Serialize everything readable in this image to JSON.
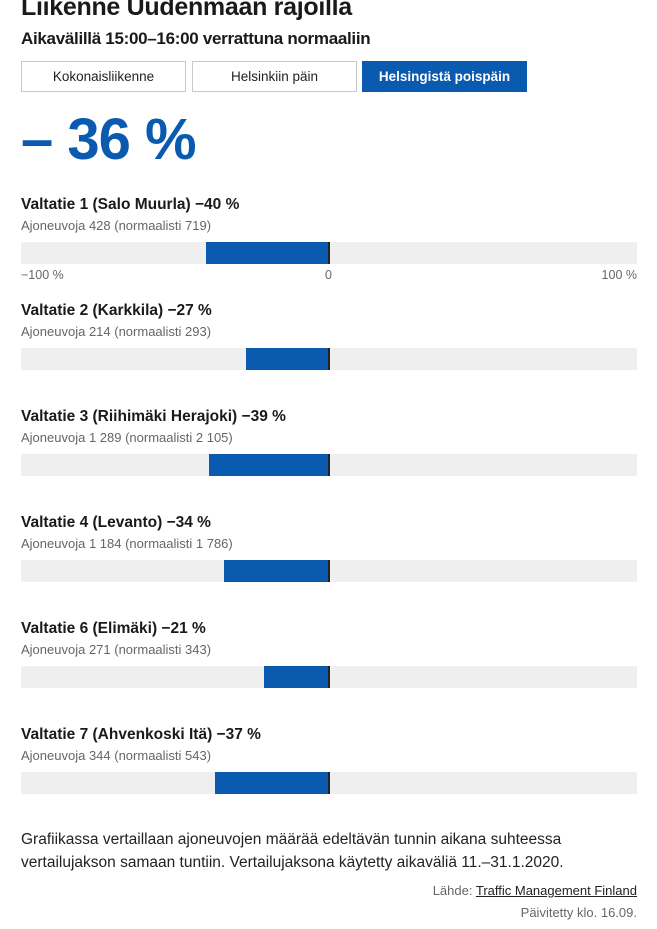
{
  "header": {
    "title": "Liikenne Uudenmaan rajoilla",
    "subtitle": "Aikavälillä 15:00–16:00 verrattuna normaaliin"
  },
  "tabs": [
    {
      "label": "Kokonaisliikenne",
      "active": false
    },
    {
      "label": "Helsinkiin päin",
      "active": false
    },
    {
      "label": "Helsingistä poispäin",
      "active": true
    }
  ],
  "total": "– 36 %",
  "colors": {
    "accent": "#0a5bb0",
    "track": "#efefef"
  },
  "chart_data": {
    "type": "bar",
    "orientation": "horizontal",
    "xlim": [
      -100,
      100
    ],
    "ticks": [
      "−100 %",
      "0",
      "100 %"
    ],
    "rows": [
      {
        "title": "Valtatie 1 (Salo Muurla) −40 %",
        "sub": "Ajoneuvoja 428 (normaalisti 719)",
        "value": -40
      },
      {
        "title": "Valtatie 2 (Karkkila) −27 %",
        "sub": "Ajoneuvoja 214 (normaalisti 293)",
        "value": -27
      },
      {
        "title": "Valtatie 3 (Riihimäki Herajoki) −39 %",
        "sub": "Ajoneuvoja 1 289 (normaalisti 2 105)",
        "value": -39
      },
      {
        "title": "Valtatie 4 (Levanto) −34 %",
        "sub": "Ajoneuvoja 1 184 (normaalisti 1 786)",
        "value": -34
      },
      {
        "title": "Valtatie 6 (Elimäki) −21 %",
        "sub": "Ajoneuvoja 271 (normaalisti 343)",
        "value": -21
      },
      {
        "title": "Valtatie 7 (Ahvenkoski Itä) −37 %",
        "sub": "Ajoneuvoja 344 (normaalisti 543)",
        "value": -37
      }
    ]
  },
  "footer": {
    "note": "Grafiikassa vertaillaan ajoneuvojen määrää edeltävän tunnin aikana suhteessa vertailujakson samaan tuntiin. Vertailujaksona käytetty aikaväliä 11.–31.1.2020.",
    "source_label": "Lähde:",
    "source_link": "Traffic Management Finland",
    "updated": "Päivitetty klo. 16.09."
  }
}
